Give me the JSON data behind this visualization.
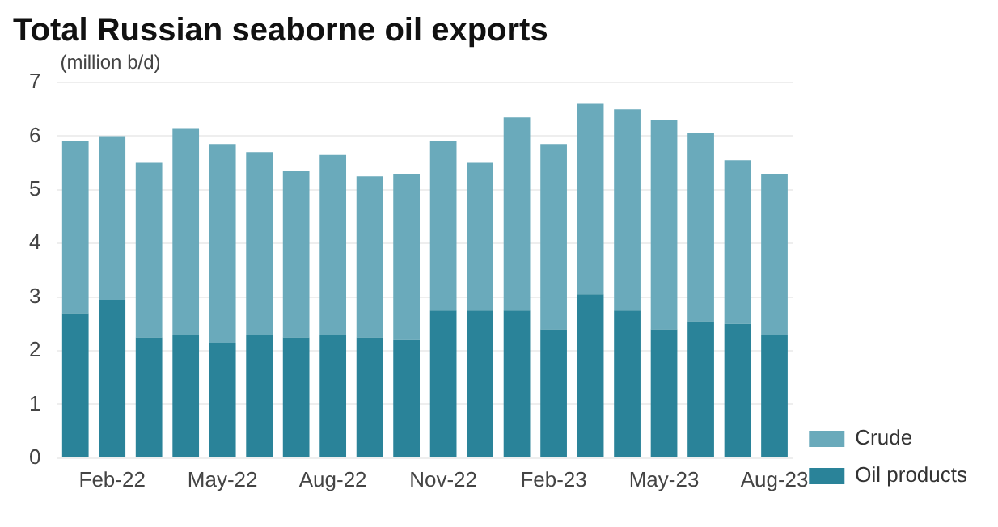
{
  "chart_data": {
    "type": "bar",
    "title": "Total Russian seaborne oil exports",
    "ylabel": "(million b/d)",
    "categories": [
      null,
      "Feb-22",
      null,
      null,
      "May-22",
      null,
      null,
      "Aug-22",
      null,
      null,
      "Nov-22",
      null,
      null,
      "Feb-23",
      null,
      null,
      "May-23",
      null,
      null,
      "Aug-23"
    ],
    "stacked": true,
    "series": [
      {
        "name": "Oil products",
        "color": "#2a8399",
        "values": [
          2.7,
          2.95,
          2.25,
          2.3,
          2.15,
          2.3,
          2.25,
          2.3,
          2.25,
          2.2,
          2.75,
          2.75,
          2.75,
          2.4,
          3.05,
          2.75,
          2.4,
          2.55,
          2.5,
          2.3
        ]
      },
      {
        "name": "Crude",
        "color": "#6aaabb",
        "values": [
          3.2,
          3.05,
          3.25,
          3.85,
          3.7,
          3.4,
          3.1,
          3.35,
          3.0,
          3.1,
          3.15,
          2.75,
          3.6,
          3.45,
          3.55,
          3.75,
          3.9,
          3.5,
          3.05,
          3.0
        ]
      }
    ],
    "ylim": [
      0,
      7
    ],
    "yticks": [
      0,
      1,
      2,
      3,
      4,
      5,
      6,
      7
    ],
    "grid": "y",
    "legend": "bottom right"
  }
}
